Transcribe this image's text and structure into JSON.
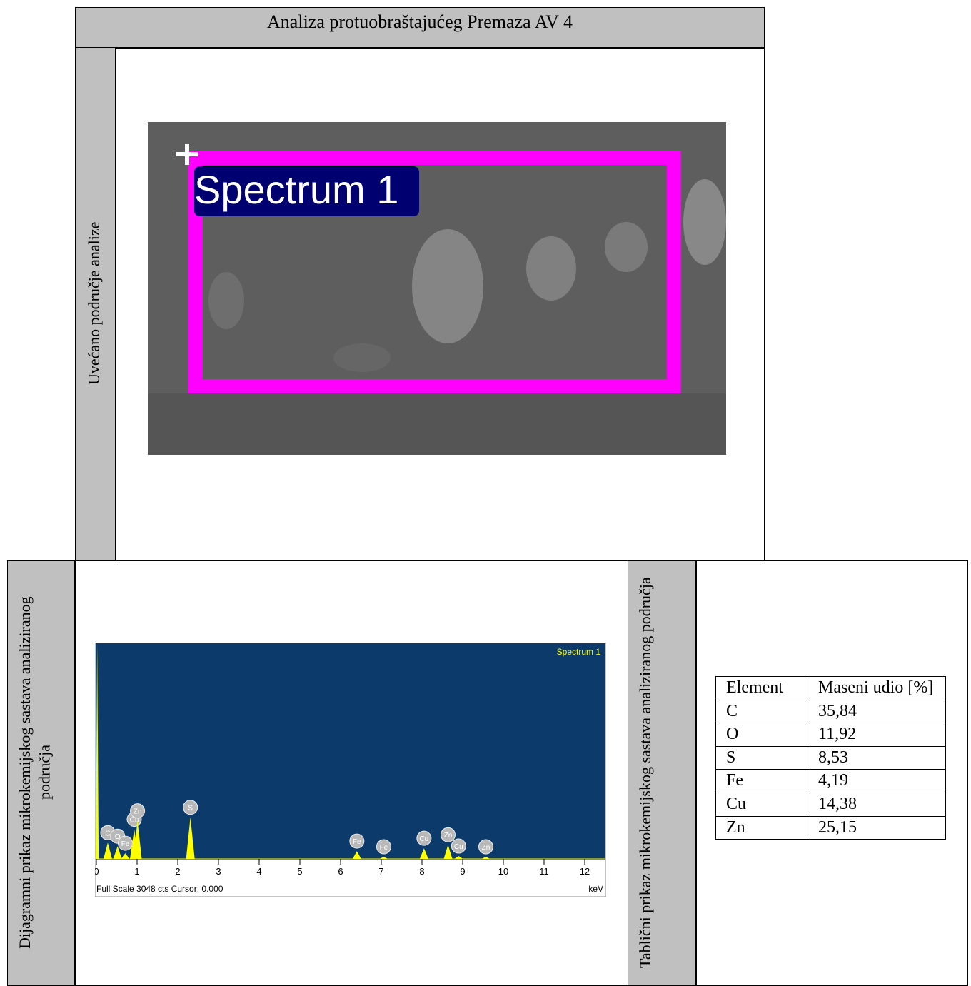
{
  "title": "Analiza protuobraštajućeg Premaza AV 4",
  "image_section": {
    "label": "Uvećano područje analize",
    "image": {
      "label": "Spectrum 1"
    }
  },
  "spectrum_section": {
    "label": "Dijagramni prikaz mikrokemijskog sastava analiziranog područja",
    "chart_data": {
      "type": "spectrum",
      "legend": "Spectrum 1",
      "footer": "Full Scale 3048 cts Cursor: 0.000",
      "x_unit": "keV",
      "xlim": [
        0,
        12.5
      ],
      "xticks": [
        0,
        1,
        2,
        3,
        4,
        5,
        6,
        7,
        8,
        9,
        10,
        11,
        12
      ],
      "ylim": [
        0,
        3048
      ],
      "background": "#0b3a6b",
      "color": "#ffff00",
      "peaks": {
        "labels": [
          null,
          "C",
          "O",
          "Fe",
          "Cu",
          "Zn",
          "S",
          "Fe",
          "Fe",
          "Cu",
          "Zn",
          "Cu",
          "Zn"
        ],
        "energy": [
          0.02,
          0.28,
          0.52,
          0.71,
          0.93,
          1.01,
          2.31,
          6.4,
          7.06,
          8.05,
          8.64,
          8.9,
          9.57
        ],
        "counts": [
          3048,
          230,
          180,
          80,
          420,
          540,
          590,
          110,
          30,
          150,
          200,
          40,
          30
        ]
      }
    }
  },
  "table_section": {
    "label": "Tablični prikaz mikrokemijskog sastava analiziranog područja",
    "table": {
      "header": [
        "Element",
        "Maseni udio [%]"
      ],
      "rows": [
        [
          "C",
          "35,84"
        ],
        [
          "O",
          "11,92"
        ],
        [
          "S",
          "8,53"
        ],
        [
          "Fe",
          "4,19"
        ],
        [
          "Cu",
          "14,38"
        ],
        [
          "Zn",
          "25,15"
        ]
      ]
    }
  }
}
